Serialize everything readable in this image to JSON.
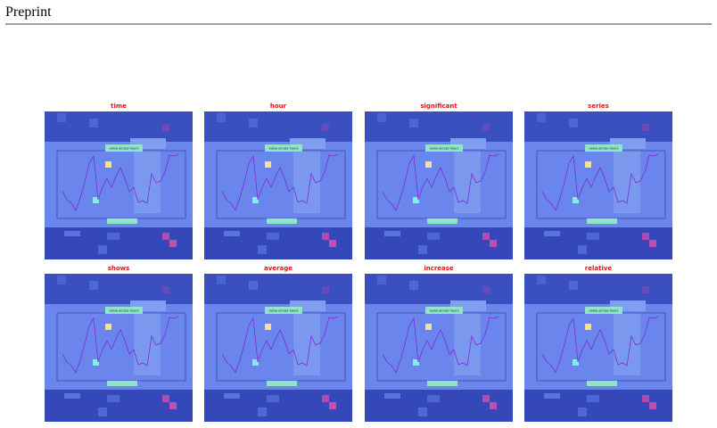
{
  "header": {
    "title": "Preprint"
  },
  "figure": {
    "panels": [
      {
        "title": "time",
        "chart_title": "value across hours"
      },
      {
        "title": "hour",
        "chart_title": "value across hours"
      },
      {
        "title": "significant",
        "chart_title": "value across hours"
      },
      {
        "title": "series",
        "chart_title": "value across hours"
      },
      {
        "title": "shows",
        "chart_title": "value across hours"
      },
      {
        "title": "average",
        "chart_title": "value across hours"
      },
      {
        "title": "increase",
        "chart_title": "value across hours"
      },
      {
        "title": "relative",
        "chart_title": "value across hours"
      }
    ]
  }
}
